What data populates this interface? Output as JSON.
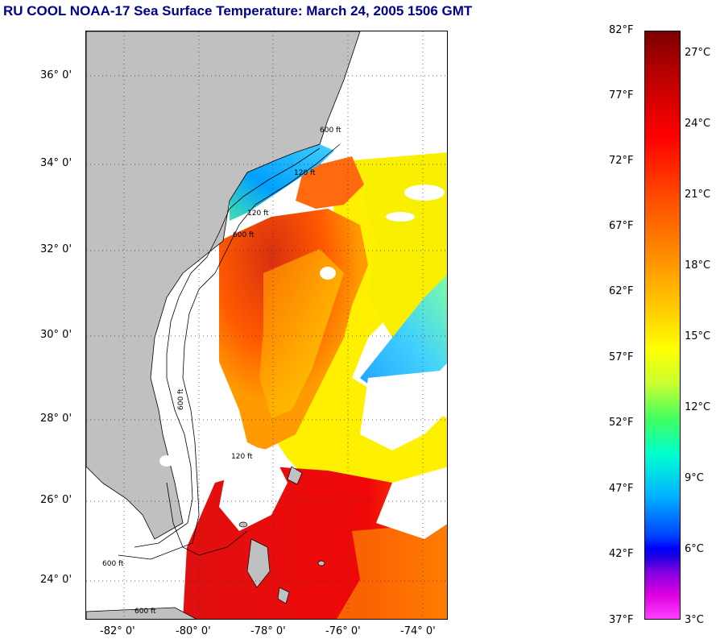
{
  "title": "RU COOL  NOAA-17  Sea Surface Temperature:  March 24, 2005 1506 GMT",
  "map": {
    "latitude_labels": [
      "36° 0'",
      "34° 0'",
      "32° 0'",
      "30° 0'",
      "28° 0'",
      "26° 0'",
      "24° 0'"
    ],
    "longitude_labels": [
      "-82° 0'",
      "-80° 0'",
      "-78° 0'",
      "-76° 0'",
      "-74° 0'"
    ],
    "isobath_labels": [
      "120 ft",
      "600 ft",
      "120 ft",
      "600 ft",
      "120 ft",
      "600 ft",
      "600 ft",
      "600 ft"
    ],
    "land_color": "#c0c0c0",
    "grid": "dotted"
  },
  "colorbar": {
    "fahrenheit_labels": [
      "82°F",
      "77°F",
      "72°F",
      "67°F",
      "62°F",
      "57°F",
      "52°F",
      "47°F",
      "42°F",
      "37°F"
    ],
    "celsius_labels": [
      "27°C",
      "24°C",
      "21°C",
      "18°C",
      "15°C",
      "12°C",
      "9°C",
      "6°C",
      "3°C"
    ]
  }
}
